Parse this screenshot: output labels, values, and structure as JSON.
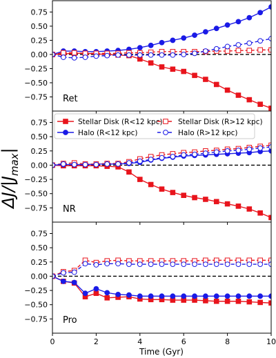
{
  "figure": {
    "ylabel": "ΔJ/|J_max|",
    "xlabel": "Time (Gyr)",
    "x_ticks": [
      "0",
      "2",
      "4",
      "6",
      "8",
      "10"
    ],
    "y_ticks": [
      "−0.75",
      "−0.50",
      "−0.25",
      "0.00",
      "0.25",
      "0.50",
      "0.75"
    ]
  },
  "legend": {
    "entries": [
      {
        "label": "Stellar Disk (R<12 kpc)",
        "color": "#e8141c",
        "marker": "square-filled",
        "linestyle": "solid"
      },
      {
        "label": "Halo (R<12 kpc)",
        "color": "#1a1ae6",
        "marker": "circle-filled",
        "linestyle": "solid"
      },
      {
        "label": "Stellar Disk (R>12 kpc)",
        "color": "#e8141c",
        "marker": "square-open",
        "linestyle": "dashed"
      },
      {
        "label": "Halo (R>12 kpc)",
        "color": "#1a1ae6",
        "marker": "circle-open",
        "linestyle": "dashed"
      }
    ]
  },
  "chart_data": [
    {
      "type": "line",
      "panel_label": "Ret",
      "xlim": [
        0,
        10
      ],
      "ylim": [
        -1.0,
        0.95
      ],
      "reference_line": 0,
      "x": [
        0,
        0.5,
        1.0,
        1.5,
        2.0,
        2.5,
        3.0,
        3.5,
        4.0,
        4.5,
        5.0,
        5.5,
        6.0,
        6.5,
        7.0,
        7.5,
        8.0,
        8.5,
        9.0,
        9.5,
        10.0
      ],
      "series": [
        {
          "legend_index": 0,
          "values": [
            0,
            0.01,
            0.02,
            0.02,
            0.01,
            0.0,
            -0.01,
            -0.02,
            -0.08,
            -0.15,
            -0.22,
            -0.26,
            -0.3,
            -0.37,
            -0.44,
            -0.53,
            -0.63,
            -0.72,
            -0.8,
            -0.88,
            -0.95
          ]
        },
        {
          "legend_index": 1,
          "values": [
            0,
            0.06,
            0.06,
            0.05,
            0.05,
            0.06,
            0.07,
            0.09,
            0.12,
            0.16,
            0.21,
            0.25,
            0.29,
            0.34,
            0.4,
            0.46,
            0.52,
            0.58,
            0.65,
            0.74,
            0.84
          ]
        },
        {
          "legend_index": 2,
          "values": [
            0,
            0.03,
            0.03,
            0.02,
            0.02,
            0.02,
            0.02,
            0.03,
            0.03,
            0.04,
            0.05,
            0.05,
            0.05,
            0.05,
            0.05,
            0.06,
            0.06,
            0.07,
            0.07,
            0.08,
            0.08
          ]
        },
        {
          "legend_index": 3,
          "values": [
            0,
            -0.05,
            -0.06,
            -0.05,
            -0.03,
            -0.02,
            -0.01,
            -0.01,
            -0.01,
            -0.01,
            -0.01,
            -0.01,
            0.0,
            0.02,
            0.06,
            0.1,
            0.14,
            0.17,
            0.2,
            0.24,
            0.28
          ]
        }
      ]
    },
    {
      "type": "line",
      "panel_label": "NR",
      "xlim": [
        0,
        10
      ],
      "ylim": [
        -1.0,
        0.95
      ],
      "reference_line": 0,
      "x": [
        0,
        0.5,
        1.0,
        1.5,
        2.0,
        2.5,
        3.0,
        3.5,
        4.0,
        4.5,
        5.0,
        5.5,
        6.0,
        6.5,
        7.0,
        7.5,
        8.0,
        8.5,
        9.0,
        9.5,
        10.0
      ],
      "series": [
        {
          "legend_index": 0,
          "values": [
            0,
            -0.01,
            -0.01,
            -0.01,
            -0.01,
            -0.02,
            -0.03,
            -0.12,
            -0.25,
            -0.34,
            -0.42,
            -0.48,
            -0.53,
            -0.57,
            -0.6,
            -0.64,
            -0.68,
            -0.72,
            -0.77,
            -0.84,
            -0.92
          ]
        },
        {
          "legend_index": 1,
          "values": [
            0,
            0.01,
            0.01,
            0.01,
            0.02,
            0.02,
            0.02,
            0.03,
            0.05,
            0.09,
            0.12,
            0.14,
            0.16,
            0.17,
            0.18,
            0.19,
            0.2,
            0.21,
            0.22,
            0.24,
            0.25
          ]
        },
        {
          "legend_index": 2,
          "values": [
            0,
            0.03,
            0.04,
            0.02,
            0.02,
            0.03,
            0.03,
            0.06,
            0.11,
            0.15,
            0.18,
            0.2,
            0.22,
            0.23,
            0.25,
            0.26,
            0.28,
            0.29,
            0.31,
            0.33,
            0.35
          ]
        },
        {
          "legend_index": 3,
          "values": [
            0,
            0.02,
            0.01,
            0.01,
            0.01,
            0.02,
            0.02,
            0.04,
            0.07,
            0.1,
            0.13,
            0.15,
            0.18,
            0.19,
            0.21,
            0.23,
            0.25,
            0.26,
            0.28,
            0.3,
            0.32
          ]
        }
      ]
    },
    {
      "type": "line",
      "panel_label": "Pro",
      "xlim": [
        0,
        10
      ],
      "ylim": [
        -1.0,
        0.95
      ],
      "reference_line": 0,
      "x": [
        0,
        0.5,
        1.0,
        1.5,
        2.0,
        2.5,
        3.0,
        3.5,
        4.0,
        4.5,
        5.0,
        5.5,
        6.0,
        6.5,
        7.0,
        7.5,
        8.0,
        8.5,
        9.0,
        9.5,
        10.0
      ],
      "series": [
        {
          "legend_index": 0,
          "values": [
            0,
            -0.09,
            -0.12,
            -0.36,
            -0.3,
            -0.38,
            -0.37,
            -0.36,
            -0.4,
            -0.41,
            -0.41,
            -0.42,
            -0.42,
            -0.42,
            -0.43,
            -0.44,
            -0.44,
            -0.44,
            -0.45,
            -0.46,
            -0.47
          ]
        },
        {
          "legend_index": 1,
          "values": [
            0,
            -0.09,
            -0.11,
            -0.3,
            -0.22,
            -0.29,
            -0.32,
            -0.33,
            -0.35,
            -0.35,
            -0.35,
            -0.35,
            -0.35,
            -0.35,
            -0.35,
            -0.35,
            -0.35,
            -0.35,
            -0.35,
            -0.35,
            -0.35
          ]
        },
        {
          "legend_index": 2,
          "values": [
            0,
            0.08,
            0.1,
            0.28,
            0.24,
            0.27,
            0.28,
            0.27,
            0.27,
            0.27,
            0.27,
            0.27,
            0.27,
            0.27,
            0.28,
            0.28,
            0.28,
            0.28,
            0.28,
            0.28,
            0.28
          ]
        },
        {
          "legend_index": 3,
          "values": [
            0,
            0.06,
            0.07,
            0.22,
            0.2,
            0.22,
            0.22,
            0.21,
            0.21,
            0.21,
            0.21,
            0.21,
            0.21,
            0.21,
            0.21,
            0.21,
            0.21,
            0.21,
            0.21,
            0.21,
            0.21
          ]
        }
      ]
    }
  ]
}
